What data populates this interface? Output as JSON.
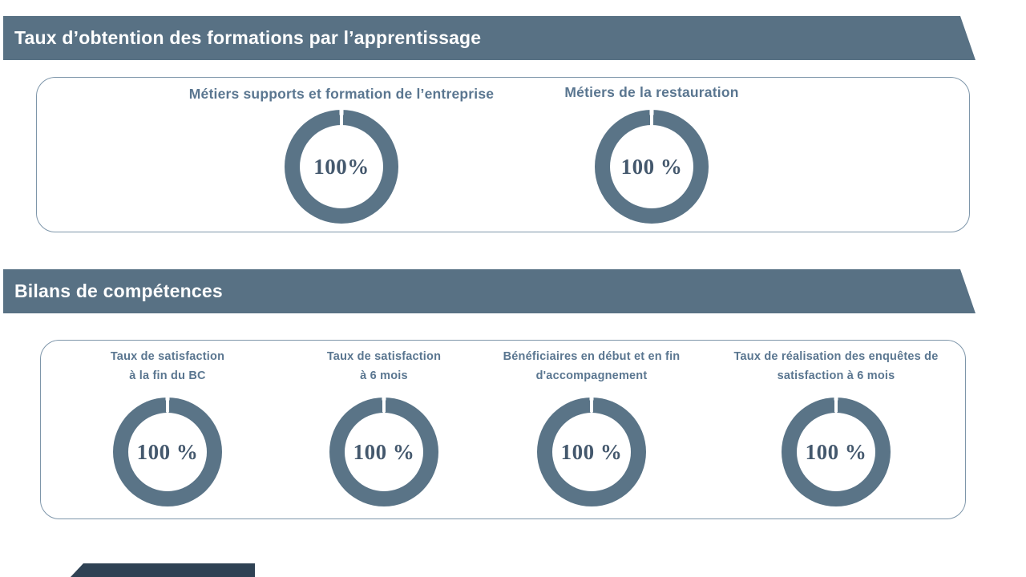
{
  "slide": {
    "sections": [
      {
        "banner": "Taux d’obtention des formations par l’apprentissage",
        "charts": [
          {
            "label": "Métiers supports et formation de l’entreprise",
            "value": "100%",
            "percent": 100
          },
          {
            "label": "Métiers de la restauration",
            "value": "100 %",
            "percent": 100
          }
        ]
      },
      {
        "banner": "Bilans de compétences",
        "charts": [
          {
            "label_lines": [
              "Taux de satisfaction",
              "à la fin du BC"
            ],
            "value": "100 %",
            "percent": 100
          },
          {
            "label_lines": [
              "Taux de satisfaction",
              "à 6 mois"
            ],
            "value": "100 %",
            "percent": 100
          },
          {
            "label_lines": [
              "Bénéficiaires en début et en fin",
              "d'accompagnement"
            ],
            "value": "100 %",
            "percent": 100
          },
          {
            "label_lines": [
              "Taux de réalisation des enquêtes de",
              "satisfaction à 6 mois"
            ],
            "value": "100 %",
            "percent": 100
          }
        ]
      }
    ]
  },
  "colors": {
    "banner": "#587184",
    "ring": "#5a7487",
    "label": "#5a7690",
    "value": "#44586d",
    "border": "#7e96aa",
    "footer": "#2f4254"
  },
  "chart_data": [
    {
      "type": "pie",
      "subtype": "donut-gauge",
      "title": "Taux d’obtention des formations par l’apprentissage",
      "unit": "%",
      "series": [
        {
          "name": "Métiers supports et formation de l’entreprise",
          "value": 100,
          "label": "100%"
        },
        {
          "name": "Métiers de la restauration",
          "value": 100,
          "label": "100 %"
        }
      ],
      "legend_position": "above-each-donut",
      "ring_color": "#5a7487"
    },
    {
      "type": "pie",
      "subtype": "donut-gauge",
      "title": "Bilans de compétences",
      "unit": "%",
      "series": [
        {
          "name": "Taux de satisfaction à la fin du BC",
          "value": 100,
          "label": "100 %"
        },
        {
          "name": "Taux de satisfaction à 6 mois",
          "value": 100,
          "label": "100 %"
        },
        {
          "name": "Bénéficiaires en début et en fin d'accompagnement",
          "value": 100,
          "label": "100 %"
        },
        {
          "name": "Taux de réalisation des enquêtes de satisfaction à 6 mois",
          "value": 100,
          "label": "100 %"
        }
      ],
      "legend_position": "above-each-donut",
      "ring_color": "#5a7487"
    }
  ]
}
